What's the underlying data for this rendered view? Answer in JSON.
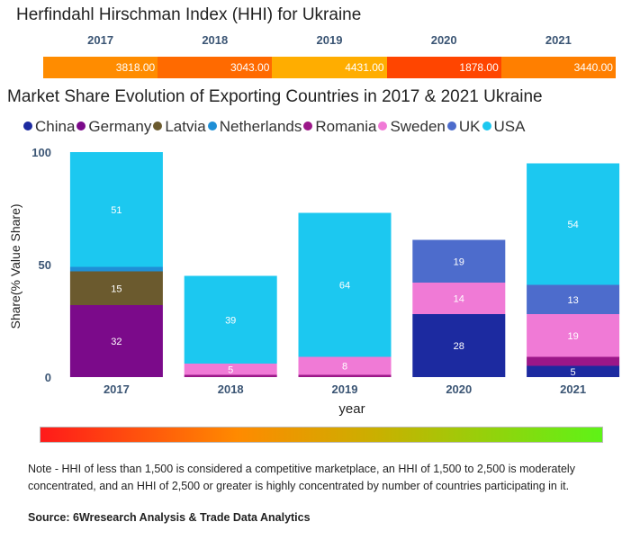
{
  "hhi": {
    "title": "Herfindahl Hirschman Index (HHI) for Ukraine",
    "years": [
      "2017",
      "2018",
      "2019",
      "2020",
      "2021"
    ],
    "values": [
      "3818.00",
      "3043.00",
      "4431.00",
      "1878.00",
      "3440.00"
    ],
    "colors": [
      "#ff8c00",
      "#ff6a00",
      "#ffad00",
      "#ff4500",
      "#ff7f00"
    ]
  },
  "chart_data": {
    "type": "bar",
    "stacked": true,
    "title": "Market Share Evolution of Exporting Countries in 2017 & 2021 Ukraine",
    "xlabel": "year",
    "ylabel": "Share(% Value Share)",
    "ylim": [
      0,
      100
    ],
    "yticks": [
      "0",
      "50",
      "100"
    ],
    "categories": [
      "2017",
      "2018",
      "2019",
      "2020",
      "2021"
    ],
    "series": [
      {
        "name": "China",
        "color": "#1c2aa0",
        "values": [
          0,
          0,
          0,
          28,
          5
        ],
        "labels": [
          "",
          "",
          "",
          "28",
          "5"
        ]
      },
      {
        "name": "Germany",
        "color": "#7b0a8a",
        "values": [
          32,
          0,
          0,
          0,
          0
        ],
        "labels": [
          "32",
          "",
          "",
          "",
          ""
        ]
      },
      {
        "name": "Latvia",
        "color": "#6b5a2e",
        "values": [
          15,
          0,
          0,
          0,
          0
        ],
        "labels": [
          "15",
          "",
          "",
          "",
          ""
        ]
      },
      {
        "name": "Netherlands",
        "color": "#1f8fd6",
        "values": [
          2,
          0,
          0,
          0,
          0
        ],
        "labels": [
          "",
          "",
          "",
          "",
          ""
        ]
      },
      {
        "name": "Romania",
        "color": "#9b1788",
        "values": [
          0,
          1,
          1,
          0,
          4
        ],
        "labels": [
          "",
          "",
          "",
          "",
          ""
        ]
      },
      {
        "name": "Sweden",
        "color": "#f07ad6",
        "values": [
          0,
          5,
          8,
          14,
          19
        ],
        "labels": [
          "",
          "5",
          "8",
          "14",
          "19"
        ]
      },
      {
        "name": "UK",
        "color": "#4d6ccc",
        "values": [
          0,
          0,
          0,
          19,
          13
        ],
        "labels": [
          "",
          "",
          "",
          "19",
          "13"
        ]
      },
      {
        "name": "USA",
        "color": "#1cc8f0",
        "values": [
          51,
          39,
          64,
          0,
          54
        ],
        "labels": [
          "51",
          "39",
          "64",
          "",
          "54"
        ]
      }
    ]
  },
  "gradient": {
    "start": "#ff1a1a",
    "end": "#5ef317"
  },
  "note": "Note - HHI of less than 1,500 is considered a competitive marketplace, an HHI of 1,500 to 2,500 is moderately concentrated, and an HHI of 2,500 or greater is highly concentrated by number of countries participating in it.",
  "source": "Source: 6Wresearch Analysis & Trade Data Analytics"
}
